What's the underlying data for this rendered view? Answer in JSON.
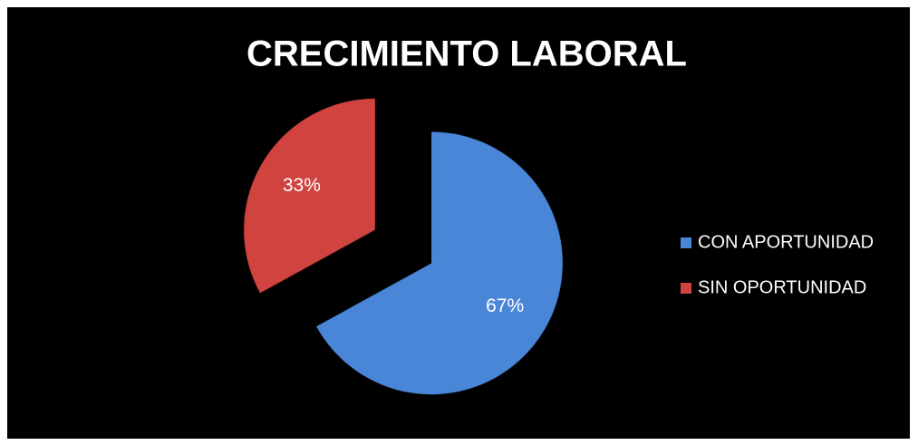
{
  "chart_data": {
    "type": "pie",
    "title": "CRECIMIENTO LABORAL",
    "categories": [
      "CON APORTUNIDAD",
      "SIN OPORTUNIDAD"
    ],
    "values": [
      67,
      33
    ],
    "value_labels": [
      "67%",
      "33%"
    ],
    "colors": [
      "#4a86d8",
      "#d0433f"
    ],
    "legend": "right",
    "exploded": true
  }
}
